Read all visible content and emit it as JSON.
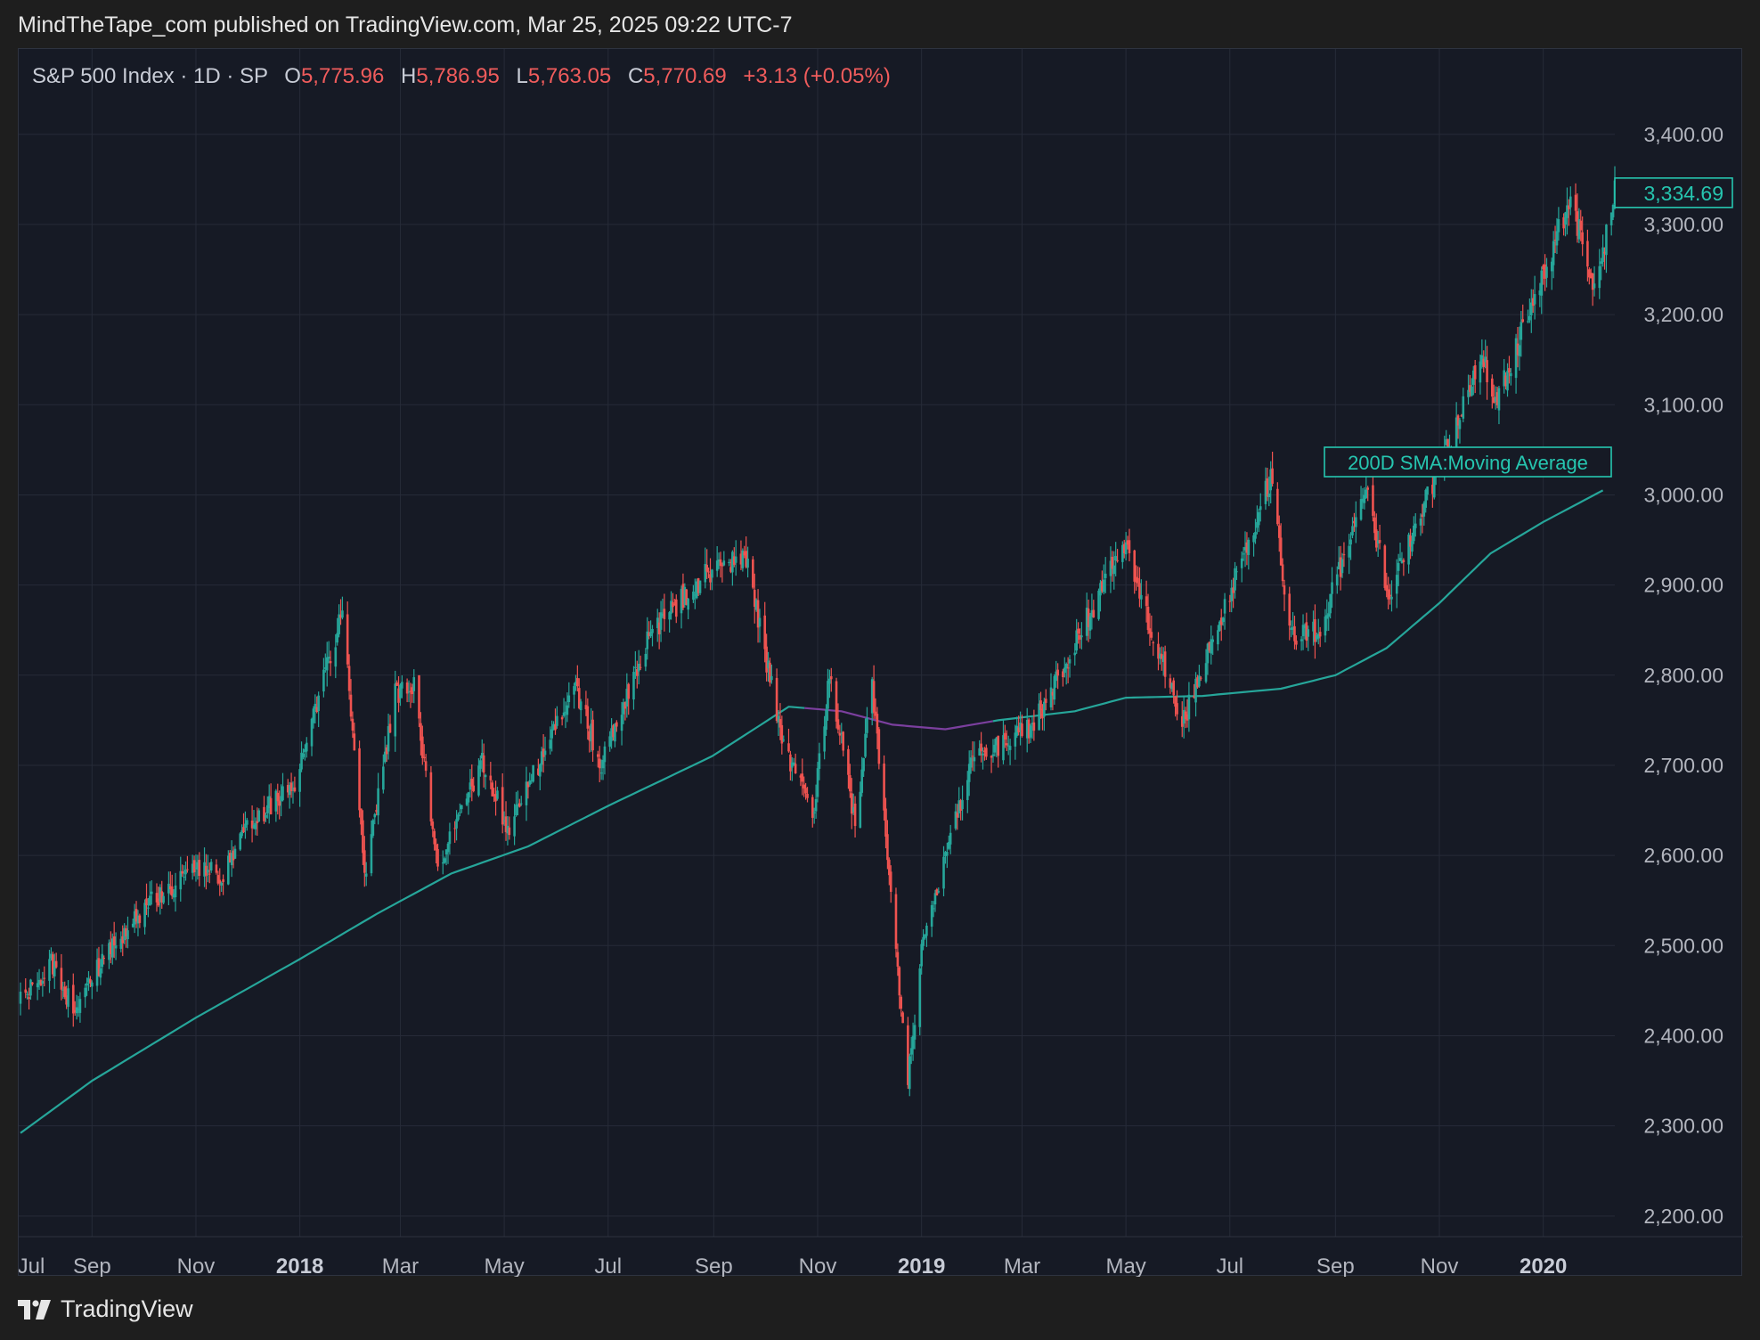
{
  "header": {
    "publisher": "MindTheTape_com published on TradingView.com, Mar 25, 2025 09:22 UTC-7"
  },
  "legend": {
    "symbol": "S&P 500 Index · 1D · SP",
    "o_key": "O",
    "o_val": "5,775.96",
    "h_key": "H",
    "h_val": "5,786.95",
    "l_key": "L",
    "l_val": "5,763.05",
    "c_key": "C",
    "c_val": "5,770.69",
    "change": "+3.13 (+0.05%)"
  },
  "footer": {
    "brand": "TradingView"
  },
  "colors": {
    "up": "#26a69a",
    "down": "#ef5350",
    "sma": "#26a69a",
    "sma_below": "#7b3f9e",
    "grid": "#262b38",
    "axis_text": "#b2b5be",
    "price_label": "#26c6b0"
  },
  "chart_data": {
    "type": "candlestick",
    "title": "S&P 500 Index · 1D · SP",
    "y_ticks": [
      "2,200.00",
      "2,300.00",
      "2,400.00",
      "2,500.00",
      "2,600.00",
      "2,700.00",
      "2,800.00",
      "2,900.00",
      "3,000.00",
      "3,100.00",
      "3,200.00",
      "3,300.00",
      "3,400.00"
    ],
    "y_tick_values": [
      2200,
      2300,
      2400,
      2500,
      2600,
      2700,
      2800,
      2900,
      3000,
      3100,
      3200,
      3300,
      3400
    ],
    "ylim": [
      2185,
      3465
    ],
    "x_ticks": [
      {
        "label": "Jul",
        "date": "2017-07-01",
        "bold": false
      },
      {
        "label": "Sep",
        "date": "2017-09-01",
        "bold": false
      },
      {
        "label": "Nov",
        "date": "2017-11-01",
        "bold": false
      },
      {
        "label": "2018",
        "date": "2018-01-01",
        "bold": true
      },
      {
        "label": "Mar",
        "date": "2018-03-01",
        "bold": false
      },
      {
        "label": "May",
        "date": "2018-05-01",
        "bold": false
      },
      {
        "label": "Jul",
        "date": "2018-07-01",
        "bold": false
      },
      {
        "label": "Sep",
        "date": "2018-09-01",
        "bold": false
      },
      {
        "label": "Nov",
        "date": "2018-11-01",
        "bold": false
      },
      {
        "label": "2019",
        "date": "2019-01-01",
        "bold": true
      },
      {
        "label": "Mar",
        "date": "2019-03-01",
        "bold": false
      },
      {
        "label": "May",
        "date": "2019-05-01",
        "bold": false
      },
      {
        "label": "Jul",
        "date": "2019-07-01",
        "bold": false
      },
      {
        "label": "Sep",
        "date": "2019-09-01",
        "bold": false
      },
      {
        "label": "Nov",
        "date": "2019-11-01",
        "bold": false
      },
      {
        "label": "2020",
        "date": "2020-01-01",
        "bold": true
      }
    ],
    "x_range": [
      "2017-07-21",
      "2020-02-12"
    ],
    "last_price": 3334.69,
    "last_price_label": "3,334.69",
    "sma_label": "200D SMA:Moving Average",
    "close_series": [
      {
        "date": "2017-07-21",
        "close": 2440
      },
      {
        "date": "2017-08-08",
        "close": 2480
      },
      {
        "date": "2017-08-21",
        "close": 2430
      },
      {
        "date": "2017-09-11",
        "close": 2495
      },
      {
        "date": "2017-10-05",
        "close": 2550
      },
      {
        "date": "2017-11-08",
        "close": 2590
      },
      {
        "date": "2017-11-15",
        "close": 2570
      },
      {
        "date": "2017-12-04",
        "close": 2640
      },
      {
        "date": "2017-12-29",
        "close": 2675
      },
      {
        "date": "2018-01-26",
        "close": 2870
      },
      {
        "date": "2018-02-08",
        "close": 2580
      },
      {
        "date": "2018-02-26",
        "close": 2780
      },
      {
        "date": "2018-03-09",
        "close": 2790
      },
      {
        "date": "2018-03-23",
        "close": 2590
      },
      {
        "date": "2018-04-18",
        "close": 2705
      },
      {
        "date": "2018-05-03",
        "close": 2630
      },
      {
        "date": "2018-06-12",
        "close": 2785
      },
      {
        "date": "2018-06-27",
        "close": 2700
      },
      {
        "date": "2018-07-25",
        "close": 2845
      },
      {
        "date": "2018-08-29",
        "close": 2915
      },
      {
        "date": "2018-09-20",
        "close": 2930
      },
      {
        "date": "2018-10-11",
        "close": 2730
      },
      {
        "date": "2018-10-29",
        "close": 2640
      },
      {
        "date": "2018-11-08",
        "close": 2805
      },
      {
        "date": "2018-11-23",
        "close": 2635
      },
      {
        "date": "2018-12-03",
        "close": 2790
      },
      {
        "date": "2018-12-24",
        "close": 2350
      },
      {
        "date": "2019-01-02",
        "close": 2510
      },
      {
        "date": "2019-01-31",
        "close": 2705
      },
      {
        "date": "2019-03-08",
        "close": 2745
      },
      {
        "date": "2019-04-30",
        "close": 2945
      },
      {
        "date": "2019-06-03",
        "close": 2745
      },
      {
        "date": "2019-07-26",
        "close": 3025
      },
      {
        "date": "2019-08-05",
        "close": 2845
      },
      {
        "date": "2019-08-23",
        "close": 2850
      },
      {
        "date": "2019-09-19",
        "close": 3005
      },
      {
        "date": "2019-10-02",
        "close": 2890
      },
      {
        "date": "2019-11-27",
        "close": 3155
      },
      {
        "date": "2019-12-03",
        "close": 3095
      },
      {
        "date": "2020-01-17",
        "close": 3330
      },
      {
        "date": "2020-01-31",
        "close": 3225
      },
      {
        "date": "2020-02-12",
        "close": 3334.69
      }
    ],
    "sma_series": [
      {
        "date": "2017-07-21",
        "value": 2292
      },
      {
        "date": "2017-09-01",
        "value": 2350
      },
      {
        "date": "2017-11-01",
        "value": 2420
      },
      {
        "date": "2018-01-01",
        "value": 2485
      },
      {
        "date": "2018-02-15",
        "value": 2535
      },
      {
        "date": "2018-03-31",
        "value": 2580
      },
      {
        "date": "2018-05-15",
        "value": 2610
      },
      {
        "date": "2018-07-01",
        "value": 2655
      },
      {
        "date": "2018-08-31",
        "value": 2710
      },
      {
        "date": "2018-10-15",
        "value": 2765
      },
      {
        "date": "2018-11-15",
        "value": 2760
      },
      {
        "date": "2018-12-15",
        "value": 2745
      },
      {
        "date": "2019-01-15",
        "value": 2740
      },
      {
        "date": "2019-02-15",
        "value": 2750
      },
      {
        "date": "2019-04-01",
        "value": 2760
      },
      {
        "date": "2019-05-01",
        "value": 2775
      },
      {
        "date": "2019-06-15",
        "value": 2777
      },
      {
        "date": "2019-07-31",
        "value": 2785
      },
      {
        "date": "2019-09-01",
        "value": 2800
      },
      {
        "date": "2019-10-01",
        "value": 2830
      },
      {
        "date": "2019-11-01",
        "value": 2880
      },
      {
        "date": "2019-12-01",
        "value": 2935
      },
      {
        "date": "2020-01-01",
        "value": 2970
      },
      {
        "date": "2020-02-05",
        "value": 3005
      }
    ],
    "sma_below_segment": [
      "2018-10-25",
      "2019-02-12"
    ],
    "grid": true
  }
}
